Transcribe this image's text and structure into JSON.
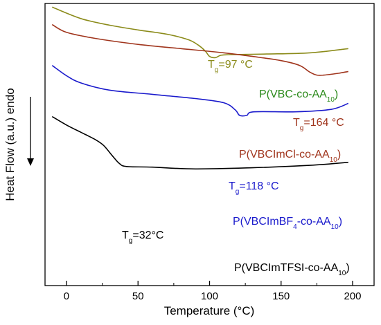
{
  "chart_data": {
    "type": "line",
    "title": "",
    "xlabel": "Temperature (°C)",
    "ylabel": "Heat Flow (a.u.) endo",
    "xlim": [
      -15,
      215
    ],
    "xticks": [
      0,
      50,
      100,
      150,
      200
    ],
    "y_units": "a.u. (offset curves, no numeric scale)",
    "grid": false,
    "legend": "none; series labelled directly on the plot",
    "endo_arrow": "down",
    "series": [
      {
        "name": "P(VBC-co-AA10)",
        "name_parts": [
          "P(VBC-co-AA",
          "10",
          ")"
        ],
        "color": "#8b8b1a",
        "label_color": "#2a8a1a",
        "tg_label": [
          "T",
          "g",
          "=97 °C"
        ],
        "points": [
          [
            -10,
            8.95
          ],
          [
            10,
            8.0
          ],
          [
            30,
            7.45
          ],
          [
            50,
            7.05
          ],
          [
            70,
            6.7
          ],
          [
            85,
            6.25
          ],
          [
            92,
            5.8
          ],
          [
            97,
            5.3
          ],
          [
            100,
            4.85
          ],
          [
            104,
            4.75
          ],
          [
            108,
            4.95
          ],
          [
            115,
            5.0
          ],
          [
            140,
            5.05
          ],
          [
            170,
            5.15
          ],
          [
            197,
            5.5
          ]
        ]
      },
      {
        "name": "P(VBCImCl-co-AA10)",
        "name_parts": [
          "P(VBCImCl-co-AA",
          "10",
          ")"
        ],
        "color": "#a0351d",
        "label_color": "#a0351d",
        "tg_label": [
          "T",
          "g",
          "=164 °C"
        ],
        "points": [
          [
            -10,
            7.5
          ],
          [
            0,
            6.85
          ],
          [
            20,
            6.35
          ],
          [
            50,
            5.85
          ],
          [
            80,
            5.5
          ],
          [
            110,
            5.15
          ],
          [
            130,
            4.85
          ],
          [
            150,
            4.5
          ],
          [
            163,
            4.1
          ],
          [
            170,
            3.55
          ],
          [
            175,
            3.3
          ],
          [
            180,
            3.3
          ],
          [
            190,
            3.45
          ],
          [
            197,
            3.6
          ]
        ]
      },
      {
        "name": "P(VBCImBF4-co-AA10)",
        "name_parts": [
          "P(VBCImBF",
          "4",
          "-co-AA",
          "10",
          ")"
        ],
        "color": "#1a1acc",
        "label_color": "#1a1acc",
        "tg_label": [
          "T",
          "g",
          "=118 °C"
        ],
        "points": [
          [
            -10,
            4.1
          ],
          [
            0,
            3.25
          ],
          [
            10,
            2.65
          ],
          [
            30,
            2.05
          ],
          [
            60,
            1.7
          ],
          [
            90,
            1.35
          ],
          [
            110,
            1.0
          ],
          [
            118,
            0.4
          ],
          [
            121,
            -0.05
          ],
          [
            126,
            -0.05
          ],
          [
            131,
            0.25
          ],
          [
            160,
            0.25
          ],
          [
            185,
            0.45
          ],
          [
            197,
            0.95
          ]
        ]
      },
      {
        "name": "P(VBCImTFSI-co-AA10)",
        "name_parts": [
          "P(VBCImTFSI-co-AA",
          "10",
          ")"
        ],
        "color": "#000000",
        "label_color": "#000000",
        "tg_label": [
          "T",
          "g",
          "=32°C"
        ],
        "points": [
          [
            -10,
            -0.15
          ],
          [
            0,
            -0.85
          ],
          [
            10,
            -1.45
          ],
          [
            20,
            -2.05
          ],
          [
            26,
            -2.55
          ],
          [
            32,
            -3.4
          ],
          [
            37,
            -4.05
          ],
          [
            42,
            -4.3
          ],
          [
            60,
            -4.35
          ],
          [
            90,
            -4.5
          ],
          [
            130,
            -4.4
          ],
          [
            170,
            -4.2
          ],
          [
            197,
            -3.95
          ]
        ]
      }
    ]
  }
}
